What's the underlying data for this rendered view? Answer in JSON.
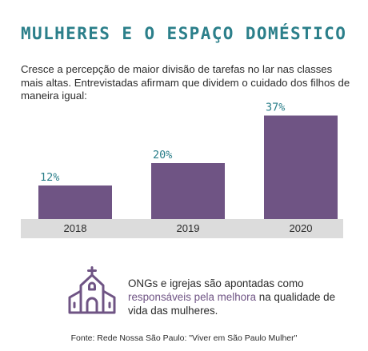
{
  "title": "MULHERES E O ESPAÇO DOMÉSTICO",
  "subtitle": "Cresce a percepção de maior divisão de tarefas no lar nas classes mais altas. Entrevistadas afirmam que dividem o cuidado dos filhos de maneira igual:",
  "chart_data": {
    "type": "bar",
    "categories": [
      "2018",
      "2019",
      "2020"
    ],
    "values": [
      12,
      20,
      37
    ],
    "value_labels": [
      "12%",
      "20%",
      "37%"
    ],
    "unit": "%",
    "ylim": [
      0,
      40
    ],
    "grid": false,
    "legend": "none",
    "bar_color": "#6f5484",
    "axis_band_color": "#dcdcdc",
    "label_color": "#2b7f8a"
  },
  "callout": {
    "icon": "church-icon",
    "icon_color": "#6f5484",
    "text_before": "ONGs e igrejas são apontadas como ",
    "highlight": "responsáveis pela melhora",
    "text_after": " na qualidade de vida das mulheres."
  },
  "source": "Fonte: Rede Nossa São Paulo: \"Viver em São Paulo Mulher\""
}
